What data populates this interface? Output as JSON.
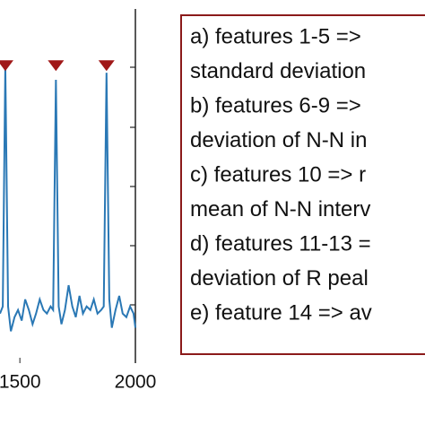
{
  "chart_data": {
    "type": "line",
    "x": [
      1414,
      1426,
      1437,
      1449,
      1461,
      1477,
      1492,
      1508,
      1523,
      1539,
      1555,
      1570,
      1586,
      1602,
      1617,
      1633,
      1644,
      1656,
      1668,
      1680,
      1695,
      1711,
      1727,
      1742,
      1758,
      1773,
      1789,
      1805,
      1820,
      1836,
      1852,
      1863,
      1875,
      1887,
      1898,
      1914,
      1930,
      1945,
      1961,
      1977,
      1992,
      2000
    ],
    "series": [
      {
        "color": "#2a78b5",
        "values": [
          0.14,
          0.16,
          0.84,
          0.16,
          0.09,
          0.13,
          0.15,
          0.12,
          0.18,
          0.15,
          0.11,
          0.14,
          0.18,
          0.15,
          0.14,
          0.16,
          0.15,
          0.8,
          0.16,
          0.11,
          0.15,
          0.22,
          0.16,
          0.13,
          0.19,
          0.14,
          0.16,
          0.15,
          0.18,
          0.14,
          0.15,
          0.16,
          0.82,
          0.18,
          0.1,
          0.15,
          0.19,
          0.14,
          0.13,
          0.16,
          0.14,
          0.1
        ]
      }
    ],
    "peaks": {
      "color": "#a01818",
      "x": [
        1437,
        1656,
        1875
      ],
      "values": [
        0.84,
        0.84,
        0.84
      ]
    },
    "xlim": [
      1414,
      2000
    ],
    "xticks": [
      1500,
      2000
    ],
    "ylim": [
      0,
      1
    ]
  },
  "legend_box": {
    "lines": [
      "a) features 1-5 =>",
      "standard deviation",
      "b) features 6-9 =>",
      "deviation of N-N in",
      "c) features 10 => r",
      "mean of N-N interv",
      "d) features 11-13 =",
      "deviation of R peal",
      "e) feature 14 => av"
    ]
  }
}
